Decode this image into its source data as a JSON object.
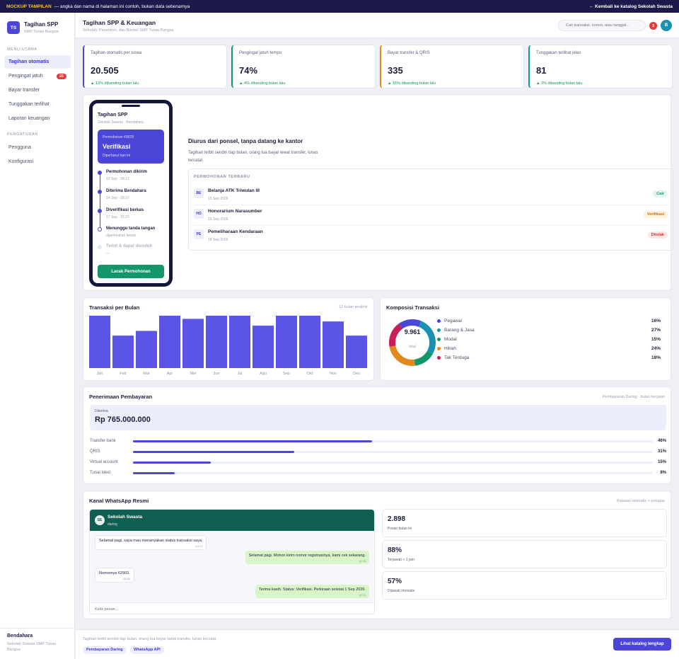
{
  "topbar": {
    "mockup_label": "MOCKUP TAMPILAN",
    "notice": "— angka dan nama di halaman ini contoh, bukan data sebenarnya",
    "back_link": "← Kembali ke katalog Sekolah Swasta"
  },
  "brand": {
    "initials": "TS",
    "title": "Tagihan SPP",
    "subtitle": "SMP Tunas Bangsa"
  },
  "sidebar": {
    "menu_heading": "MENU UTAMA",
    "menu_items": [
      {
        "label": "Tagihan otomatis",
        "active": true
      },
      {
        "label": "Pengingat jatuh",
        "badge": "25"
      },
      {
        "label": "Bayar transfer"
      },
      {
        "label": "Tunggakan terlihat"
      },
      {
        "label": "Laporan keuangan"
      }
    ],
    "settings_heading": "PENGATURAN",
    "settings_items": [
      {
        "label": "Pengguna"
      },
      {
        "label": "Konfigurasi"
      }
    ],
    "footer_name": "Bendahara",
    "footer_sub": "Sekolah Swasta SMP Tunas Bangsa"
  },
  "header": {
    "title": "Tagihan SPP & Keuangan",
    "subtitle": "Sekolah, Pesantren, dan Bimbel SMP Tunas Bangsa",
    "search_placeholder": "Cari transaksi, nomor, atau tanggal...",
    "notification_count": "3",
    "avatar_initial": "B"
  },
  "kpis": [
    {
      "label": "Tagihan otomatis per siswa",
      "value": "20.505",
      "trend": "▲ 13% dibanding bulan lalu",
      "color": "#4b46d8"
    },
    {
      "label": "Pengingat jatuh tempo",
      "value": "74%",
      "trend": "▲ 4% dibanding bulan lalu",
      "color": "#13966a"
    },
    {
      "label": "Bayar transfer & QRIS",
      "value": "335",
      "trend": "▲ 16% dibanding bulan lalu",
      "color": "#e08a1e"
    },
    {
      "label": "Tunggakan terlihat jelas",
      "value": "81",
      "trend": "▲ 3% dibanding bulan lalu",
      "color": "#1892b0"
    }
  ],
  "phone": {
    "title": "Tagihan SPP",
    "subtitle": "Sekolah Swasta · Bendahara",
    "box_label": "Permohonan 43678",
    "box_status": "Verifikasi",
    "box_note": "Diperbarui hari ini",
    "steps": [
      {
        "name": "Permohonan dikirim",
        "date": "12 Sep · 08.12",
        "state": "done"
      },
      {
        "name": "Diterima Bendahara",
        "date": "14 Sep · 09.37",
        "state": "done"
      },
      {
        "name": "Diverifikasi berkas",
        "date": "17 Sep · 15.23",
        "state": "done"
      },
      {
        "name": "Menunggu tanda tangan",
        "date": "diperkirakan besok",
        "state": "current"
      },
      {
        "name": "Terbit & dapat diunduh",
        "date": "—",
        "state": "pending"
      }
    ],
    "button": "Lacak Permohonan"
  },
  "feature": {
    "title": "Diurus dari ponsel, tanpa datang ke kantor",
    "description": "Tagihan terbit sendiri tiap bulan, orang tua bayar lewat transfer, lunas tercatat."
  },
  "requests": {
    "heading": "PERMOHONAN TERBARU",
    "items": [
      {
        "initials": "BE",
        "name": "Belanja ATK Triwulan III",
        "date": "15 Sep 2026",
        "status": "Cair",
        "status_color": "#16946a",
        "status_bg": "#e3f6ee"
      },
      {
        "initials": "HO",
        "name": "Honorarium Narasumber",
        "date": "16 Sep 2026",
        "status": "Verifikasi",
        "status_color": "#c0780e",
        "status_bg": "#fdf1dc"
      },
      {
        "initials": "PE",
        "name": "Pemeliharaan Kendaraan",
        "date": "18 Sep 2026",
        "status": "Ditolak",
        "status_color": "#d0342c",
        "status_bg": "#fde6e4"
      }
    ]
  },
  "monthly": {
    "title": "Transaksi per Bulan",
    "note": "12 bulan terakhir",
    "chart_data": {
      "type": "bar",
      "categories": [
        "Jan",
        "Feb",
        "Mar",
        "Apr",
        "Mei",
        "Jun",
        "Jul",
        "Agu",
        "Sep",
        "Okt",
        "Nov",
        "Des"
      ],
      "values": [
        100,
        62,
        71,
        100,
        94,
        100,
        100,
        81,
        100,
        100,
        89,
        62
      ],
      "ylim": [
        0,
        100
      ]
    }
  },
  "composition": {
    "title": "Komposisi Transaksi",
    "total_value": "9.961",
    "total_label": "total",
    "chart_data": {
      "type": "pie",
      "categories": [
        "Pegawai",
        "Barang & Jasa",
        "Modal",
        "Hibah",
        "Tak Terduga"
      ],
      "values": [
        16,
        27,
        15,
        24,
        18
      ],
      "labels": [
        "16%",
        "27%",
        "15%",
        "24%",
        "18%"
      ],
      "colors": [
        "#4b46d8",
        "#1892b0",
        "#13966a",
        "#e08a1e",
        "#c81e5a"
      ]
    }
  },
  "receipts": {
    "title": "Penerimaan Pembayaran",
    "note": "Pembayaran Daring · bulan berjalan",
    "received_label": "Diterima",
    "received_value": "Rp 765.000.000",
    "channels": [
      {
        "name": "Transfer bank",
        "value": 46,
        "label": "46%"
      },
      {
        "name": "QRIS",
        "value": 31,
        "label": "31%"
      },
      {
        "name": "Virtual account",
        "value": 15,
        "label": "15%"
      },
      {
        "name": "Tunai loket",
        "value": 8,
        "label": "8%"
      }
    ]
  },
  "whatsapp": {
    "title": "Kanal WhatsApp Resmi",
    "note": "Balasan otomatis + petugas",
    "contact_initials": "SE",
    "contact_name": "Sekolah Swasta",
    "contact_status": "daring",
    "messages": [
      {
        "text": "Selamat pagi, saya mau menanyakan status transaksi saya.",
        "time": "14.17",
        "dir": "in"
      },
      {
        "text": "Selamat pagi. Mohon kirim nomor registrasinya, kami cek sekarang.",
        "time": "14.18",
        "dir": "out"
      },
      {
        "text": "Nomornya 62903.",
        "time": "15.00",
        "dir": "in"
      },
      {
        "text": "Terima kasih. Status: Verifikasi. Perkiraan selesai 1 Sep 2026.",
        "time": "14.16",
        "dir": "out"
      }
    ],
    "input_placeholder": "Ketik pesan...",
    "stats": [
      {
        "value": "2.898",
        "label": "Pesan bulan ini"
      },
      {
        "value": "88%",
        "label": "Terjawab < 1 jam"
      },
      {
        "value": "57%",
        "label": "Dijawab otomatis"
      }
    ]
  },
  "footer": {
    "text": "Tagihan terbit sendiri tiap bulan, orang tua bayar lewat transfer, lunas tercatat.",
    "tags": [
      "Pembayaran Daring",
      "WhatsApp API"
    ],
    "button": "Lihat katalog lengkap"
  }
}
